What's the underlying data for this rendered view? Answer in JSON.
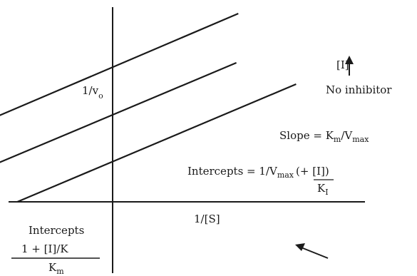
{
  "chart_data": {
    "type": "line",
    "title": "",
    "xlabel": "1/[S]",
    "ylabel_main": "1/v",
    "ylabel_sub": "o",
    "xlim": [
      -1.22,
      7.73
    ],
    "ylim": [
      -1.45,
      4.55
    ],
    "series": [
      {
        "x": [
          -1.0,
          6.0
        ],
        "y": [
          0.0,
          2.75
        ]
      },
      {
        "x": [
          -1.5,
          4.5
        ],
        "y": [
          0.9,
          3.25
        ]
      },
      {
        "x": [
          -2.25,
          4.55
        ],
        "y": [
          1.7,
          4.4
        ]
      }
    ],
    "annotations": {
      "inhibitor_label": "[I]",
      "inhibitor_arrow": "up-arrow-icon",
      "no_inhibitor_label": "No inhibitor",
      "slope_prefix": "Slope = K",
      "slope_sub1": "m",
      "slope_mid": "/V",
      "slope_sub2": "max",
      "yint_prefix": "Intercepts = 1/V",
      "yint_sub": "max",
      "yint_open": "(+ ",
      "yint_num": "[I]",
      "yint_close": ")",
      "yint_den": "K",
      "yint_den_sub": "I",
      "xint_title": "Intercepts",
      "xint_num": "1 + [I]/K",
      "xint_den": "K",
      "xint_den_sub": "m",
      "pointer_arrow": "left-arrow-icon"
    }
  }
}
